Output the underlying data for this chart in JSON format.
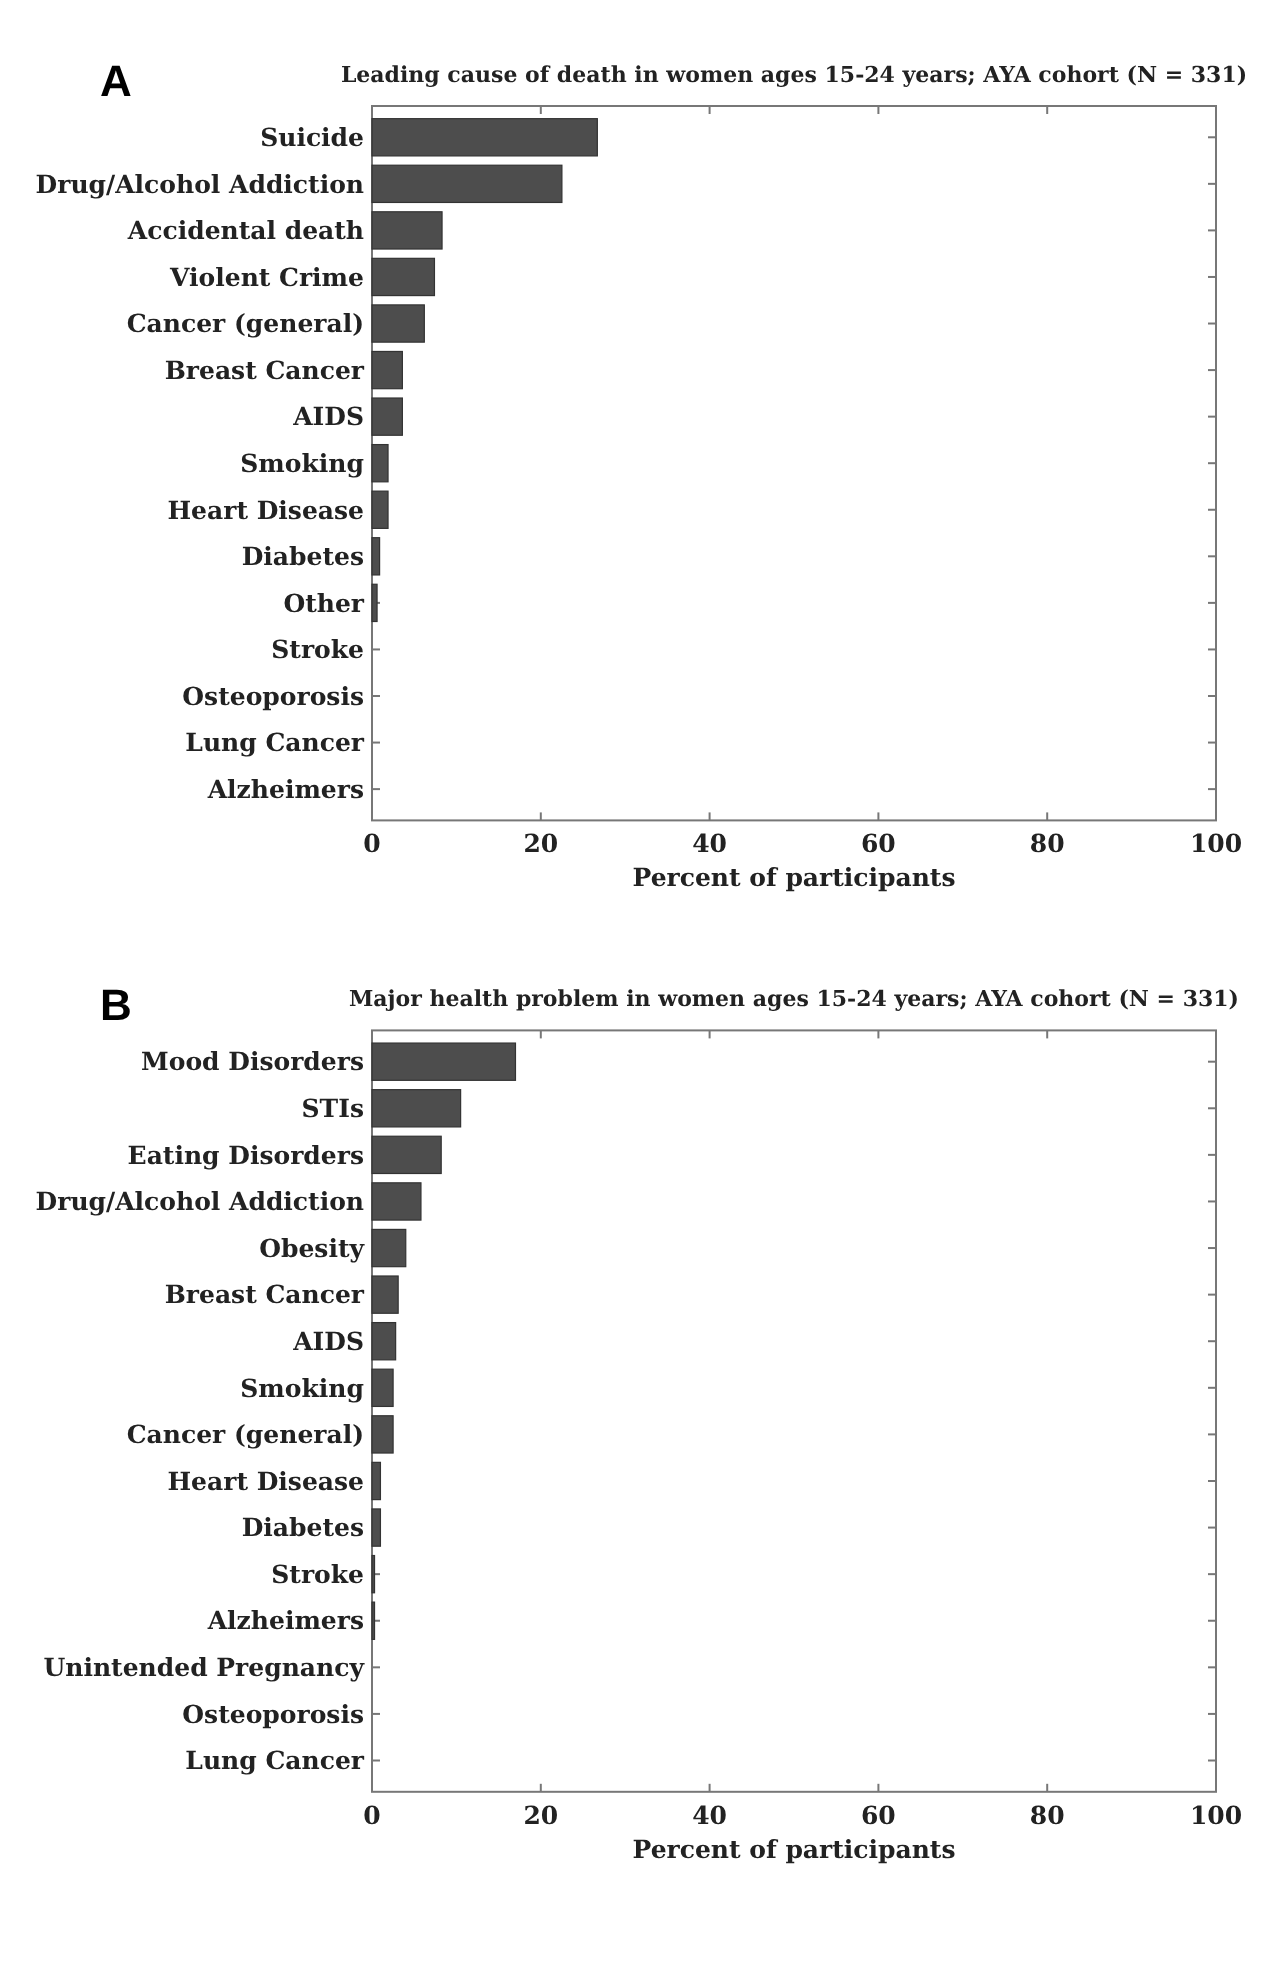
{
  "chart_data": [
    {
      "type": "bar",
      "orientation": "horizontal",
      "title": "Leading cause of death in women ages 15-24 years; AYA cohort (N = 331)",
      "xlabel": "Percent of participants",
      "annotations": [
        "A"
      ],
      "categories": [
        "Suicide",
        "Drug/Alcohol Addiction",
        "Accidental death",
        "Violent Crime",
        "Cancer (general)",
        "Breast Cancer",
        "AIDS",
        "Smoking",
        "Heart Disease",
        "Diabetes",
        "Other",
        "Stroke",
        "Osteoporosis",
        "Lung Cancer",
        "Alzheimers"
      ],
      "values": [
        26.7,
        22.5,
        8.3,
        7.4,
        6.2,
        3.6,
        3.6,
        1.9,
        1.9,
        0.9,
        0.6,
        0,
        0,
        0,
        0
      ],
      "color": "#4d4d4d",
      "xlim": [
        0,
        100
      ],
      "xticks": [
        0,
        20,
        40,
        60,
        80,
        100
      ],
      "grid": false
    },
    {
      "type": "bar",
      "orientation": "horizontal",
      "title": "Major health problem in women ages 15-24 years; AYA cohort (N = 331)",
      "xlabel": "Percent of participants",
      "annotations": [
        "B"
      ],
      "categories": [
        "Mood Disorders",
        "STIs",
        "Eating Disorders",
        "Drug/Alcohol Addiction",
        "Obesity",
        "Breast Cancer",
        "AIDS",
        "Smoking",
        "Cancer (general)",
        "Heart Disease",
        "Diabetes",
        "Stroke",
        "Alzheimers",
        "Unintended Pregnancy",
        "Osteoporosis",
        "Lung Cancer"
      ],
      "values": [
        17.0,
        10.5,
        8.2,
        5.8,
        4.0,
        3.1,
        2.8,
        2.5,
        2.5,
        1.0,
        1.0,
        0.3,
        0.3,
        0,
        0,
        0
      ],
      "color": "#4d4d4d",
      "xlim": [
        0,
        100
      ],
      "xticks": [
        0,
        20,
        40,
        60,
        80,
        100
      ],
      "grid": false
    }
  ]
}
